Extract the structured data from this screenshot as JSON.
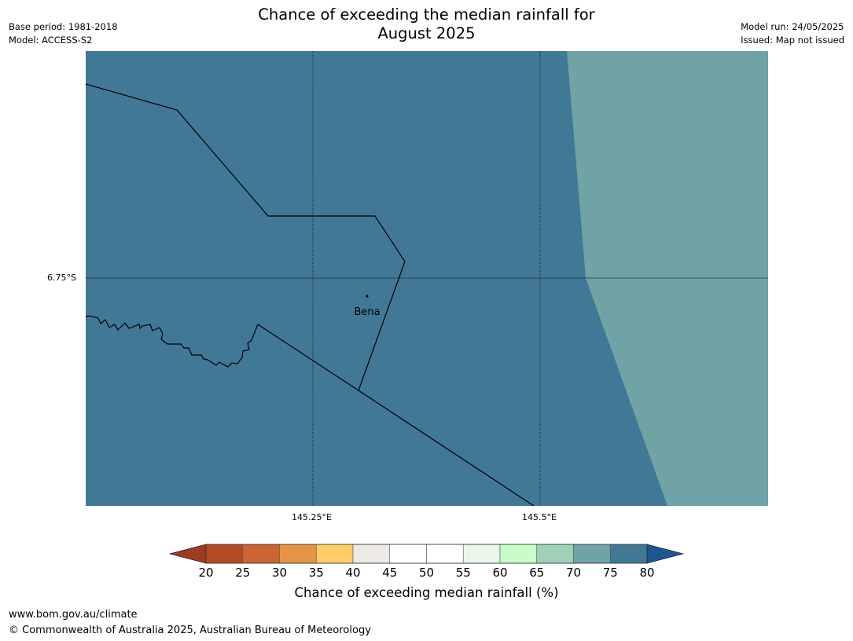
{
  "header": {
    "title_line1": "Chance of exceeding the median rainfall for",
    "title_line2": "August 2025",
    "base_period": "Base period: 1981-2018",
    "model": "Model: ACCESS-S2",
    "model_run": "Model run: 24/05/2025",
    "issued": "Issued: Map not issued"
  },
  "map": {
    "place_label": "Bena",
    "lat_label": "6.75°S",
    "lon_labels": [
      "145.25°E",
      "145.5°E"
    ],
    "colors": {
      "region_main": "#417896",
      "region_east": "#6fa3a6",
      "lines": "#000000"
    }
  },
  "colorbar": {
    "ticks": [
      "20",
      "25",
      "30",
      "35",
      "40",
      "45",
      "50",
      "55",
      "60",
      "65",
      "70",
      "75",
      "80"
    ],
    "colors": [
      "#b34a25",
      "#cd6434",
      "#e39545",
      "#ffcd67",
      "#ede9e4",
      "#ffffff",
      "#ffffff",
      "#e9f7e9",
      "#c8fdc8",
      "#9ed1b8",
      "#6fa3a6",
      "#417896"
    ],
    "under_color": "#9e3b23",
    "over_color": "#1f5591",
    "label": "Chance of exceeding median rainfall (%)"
  },
  "footer": {
    "url": "www.bom.gov.au/climate",
    "copyright": "© Commonwealth of Australia 2025, Australian Bureau of Meteorology"
  }
}
